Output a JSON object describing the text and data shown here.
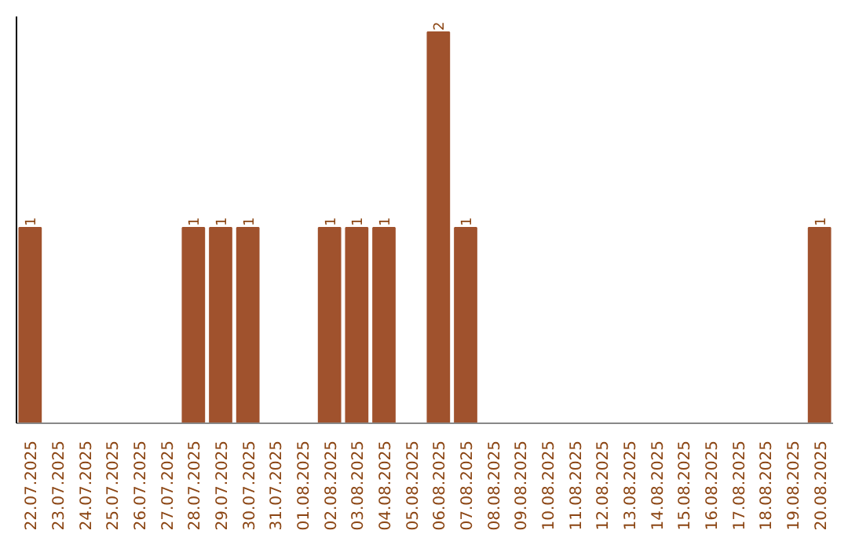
{
  "chart_data": {
    "type": "bar",
    "categories": [
      "22.07.2025",
      "23.07.2025",
      "24.07.2025",
      "25.07.2025",
      "26.07.2025",
      "27.07.2025",
      "28.07.2025",
      "29.07.2025",
      "30.07.2025",
      "31.07.2025",
      "01.08.2025",
      "02.08.2025",
      "03.08.2025",
      "04.08.2025",
      "05.08.2025",
      "06.08.2025",
      "07.08.2025",
      "08.08.2025",
      "09.08.2025",
      "10.08.2025",
      "11.08.2025",
      "12.08.2025",
      "13.08.2025",
      "14.08.2025",
      "15.08.2025",
      "16.08.2025",
      "17.08.2025",
      "18.08.2025",
      "19.08.2025",
      "20.08.2025"
    ],
    "values": [
      1,
      0,
      0,
      0,
      0,
      0,
      1,
      1,
      1,
      0,
      0,
      1,
      1,
      1,
      0,
      2,
      1,
      0,
      0,
      0,
      0,
      0,
      0,
      0,
      0,
      0,
      0,
      0,
      0,
      1
    ],
    "value_labels": [
      "1",
      null,
      null,
      null,
      null,
      null,
      "1",
      "1",
      "1",
      null,
      null,
      "1",
      "1",
      "1",
      null,
      "2",
      "1",
      null,
      null,
      null,
      null,
      null,
      null,
      null,
      null,
      null,
      null,
      null,
      null,
      "1"
    ],
    "color": "#a0522d",
    "grid": false
  }
}
